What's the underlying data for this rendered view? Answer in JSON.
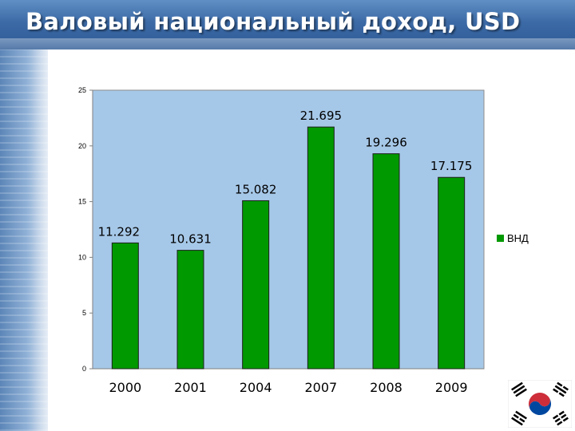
{
  "title": "Валовый национальный доход, USD",
  "chart_data": {
    "type": "bar",
    "categories": [
      "2000",
      "2001",
      "2004",
      "2007",
      "2008",
      "2009"
    ],
    "series": [
      {
        "name": "ВНД",
        "values": [
          11.292,
          10.631,
          15.082,
          21.695,
          19.296,
          17.175
        ],
        "color": "#009900"
      }
    ],
    "data_labels": [
      "11.292",
      "10.631",
      "15.082",
      "21.695",
      "19.296",
      "17.175"
    ],
    "y_ticks": [
      "0",
      "5",
      "10",
      "15",
      "20",
      "25"
    ],
    "ylim": [
      0,
      25
    ],
    "grid": false,
    "legend": "right",
    "plot_background": "#a6c8e8"
  }
}
